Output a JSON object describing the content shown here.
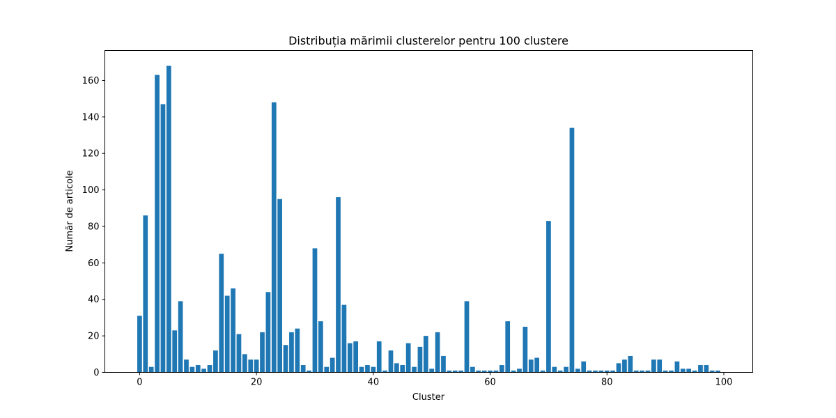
{
  "chart_data": {
    "type": "bar",
    "title": "Distribuția mărimii clusterelor pentru 100 clustere",
    "xlabel": "Cluster",
    "ylabel": "Număr de articole",
    "xlim": [
      -5.95,
      104.95
    ],
    "ylim": [
      0,
      176.4
    ],
    "xticks": [
      0,
      20,
      40,
      60,
      80,
      100
    ],
    "yticks": [
      0,
      20,
      40,
      60,
      80,
      100,
      120,
      140,
      160
    ],
    "grid": false,
    "bar_color": "#1f77b4",
    "x": [
      0,
      1,
      2,
      3,
      4,
      5,
      6,
      7,
      8,
      9,
      10,
      11,
      12,
      13,
      14,
      15,
      16,
      17,
      18,
      19,
      20,
      21,
      22,
      23,
      24,
      25,
      26,
      27,
      28,
      29,
      30,
      31,
      32,
      33,
      34,
      35,
      36,
      37,
      38,
      39,
      40,
      41,
      42,
      43,
      44,
      45,
      46,
      47,
      48,
      49,
      50,
      51,
      52,
      53,
      54,
      55,
      56,
      57,
      58,
      59,
      60,
      61,
      62,
      63,
      64,
      65,
      66,
      67,
      68,
      69,
      70,
      71,
      72,
      73,
      74,
      75,
      76,
      77,
      78,
      79,
      80,
      81,
      82,
      83,
      84,
      85,
      86,
      87,
      88,
      89,
      90,
      91,
      92,
      93,
      94,
      95,
      96,
      97,
      98,
      99
    ],
    "values": [
      31,
      86,
      3,
      163,
      147,
      168,
      23,
      39,
      7,
      3,
      4,
      2,
      4,
      12,
      65,
      42,
      46,
      21,
      10,
      7,
      7,
      22,
      44,
      148,
      95,
      15,
      22,
      24,
      4,
      1,
      68,
      28,
      3,
      8,
      96,
      37,
      16,
      17,
      3,
      4,
      3,
      17,
      1,
      12,
      5,
      4,
      16,
      3,
      14,
      20,
      2,
      22,
      9,
      1,
      1,
      1,
      39,
      3,
      1,
      1,
      1,
      1,
      4,
      28,
      1,
      2,
      25,
      7,
      8,
      1,
      83,
      3,
      1,
      3,
      134,
      2,
      6,
      1,
      1,
      1,
      1,
      1,
      5,
      7,
      9,
      1,
      1,
      1,
      7,
      7,
      1,
      1,
      6,
      2,
      2,
      1,
      4,
      4,
      1,
      1
    ]
  }
}
